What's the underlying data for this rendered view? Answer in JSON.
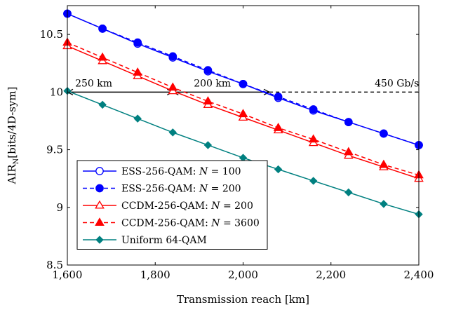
{
  "chart_data": {
    "type": "line",
    "xlabel": "Transmission reach [km]",
    "ylabel": "AIR",
    "ylabel_subscript": "N",
    "ylabel_unit": "[bits/4D-sym]",
    "xlim": [
      1600,
      2400
    ],
    "ylim": [
      8.5,
      10.75
    ],
    "xticks": [
      1600,
      1800,
      2000,
      2200,
      2400
    ],
    "xtick_labels": [
      "1,600",
      "1,800",
      "2,000",
      "2,200",
      "2,400"
    ],
    "yticks": [
      8.5,
      9,
      9.5,
      10,
      10.5
    ],
    "ytick_labels": [
      "8.5",
      "9",
      "9.5",
      "10",
      "10.5"
    ],
    "legend_position": "lower-left",
    "series": [
      {
        "name_prefix": "ESS-256-QAM: ",
        "name_math": "N",
        "name_value": " = 100",
        "color": "#0000ff",
        "dashed": false,
        "marker": "circle-open",
        "x": [
          1600,
          1680,
          1760,
          1840,
          1920,
          2000,
          2080,
          2160,
          2240,
          2320,
          2400
        ],
        "y": [
          10.68,
          10.55,
          10.42,
          10.3,
          10.18,
          10.07,
          9.95,
          9.84,
          9.74,
          9.64,
          9.54
        ]
      },
      {
        "name_prefix": "ESS-256-QAM: ",
        "name_math": "N",
        "name_value": " = 200",
        "color": "#0000ff",
        "dashed": true,
        "marker": "circle-filled",
        "x": [
          1600,
          1680,
          1760,
          1840,
          1920,
          2000,
          2080,
          2160,
          2240,
          2320,
          2400
        ],
        "y": [
          10.68,
          10.55,
          10.43,
          10.31,
          10.19,
          10.07,
          9.96,
          9.85,
          9.74,
          9.64,
          9.54
        ]
      },
      {
        "name_prefix": "CCDM-256-QAM: ",
        "name_math": "N",
        "name_value": " = 200",
        "color": "#ff0000",
        "dashed": false,
        "marker": "triangle-open",
        "x": [
          1600,
          1680,
          1760,
          1840,
          1920,
          2000,
          2080,
          2160,
          2240,
          2320,
          2400
        ],
        "y": [
          10.4,
          10.27,
          10.14,
          10.01,
          9.89,
          9.78,
          9.67,
          9.56,
          9.45,
          9.35,
          9.25
        ]
      },
      {
        "name_prefix": "CCDM-256-QAM: ",
        "name_math": "N",
        "name_value": " = 3600",
        "color": "#ff0000",
        "dashed": true,
        "marker": "triangle-filled",
        "x": [
          1600,
          1680,
          1760,
          1840,
          1920,
          2000,
          2080,
          2160,
          2240,
          2320,
          2400
        ],
        "y": [
          10.43,
          10.3,
          10.17,
          10.04,
          9.92,
          9.81,
          9.69,
          9.59,
          9.48,
          9.37,
          9.28
        ]
      },
      {
        "name_prefix": "Uniform 64-QAM",
        "name_math": "",
        "name_value": "",
        "color": "#008080",
        "dashed": false,
        "marker": "diamond-filled",
        "x": [
          1600,
          1680,
          1760,
          1840,
          1920,
          2000,
          2080,
          2160,
          2240,
          2320,
          2400
        ],
        "y": [
          10.01,
          9.89,
          9.77,
          9.65,
          9.54,
          9.43,
          9.33,
          9.23,
          9.13,
          9.03,
          8.94
        ]
      }
    ],
    "annotations": {
      "reference_y": 10,
      "dashed_line_from_x": 2060,
      "arrows": [
        {
          "from": 1600,
          "to": 1840,
          "label": "250 km"
        },
        {
          "from": 1840,
          "to": 2060,
          "label": "200 km"
        }
      ],
      "labels": [
        {
          "text": "250 km",
          "x": 1660
        },
        {
          "text": "200 km",
          "x": 1930
        },
        {
          "text": "450 Gb/s",
          "x": 2350
        }
      ]
    }
  }
}
